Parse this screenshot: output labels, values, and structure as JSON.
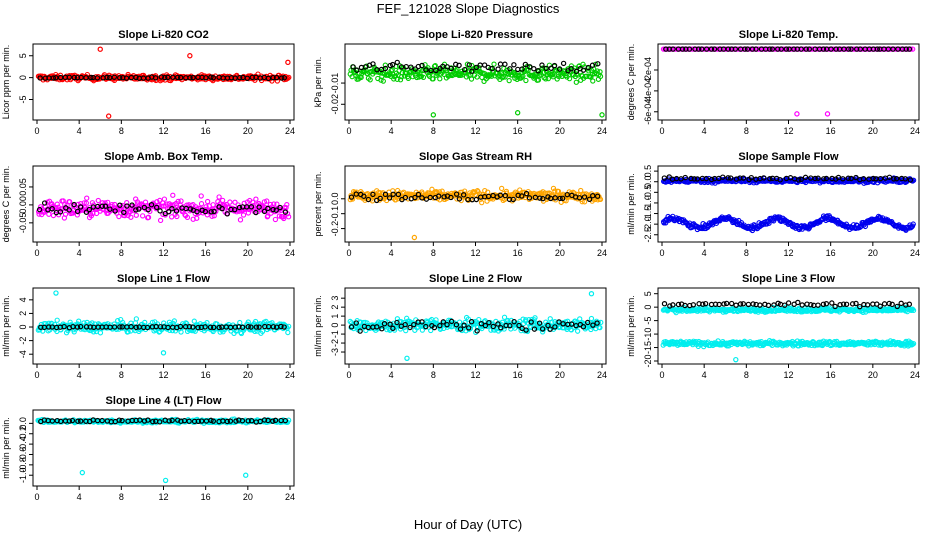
{
  "title": "FEF_121028  Slope Diagnostics",
  "x_axis_title": "Hour of Day (UTC)",
  "colors": {
    "red": "#ff0000",
    "green": "#00cc00",
    "magenta": "#ff00ff",
    "orange": "#ffa500",
    "blue": "#0000ee",
    "cyan": "#00eeee",
    "black": "#000000"
  },
  "chart_data": [
    {
      "id": "co2",
      "type": "scatter",
      "title": "Slope Li-820 CO2",
      "ylabel": "Licor ppm per min.",
      "xlim": [
        0,
        24
      ],
      "xticks": [
        0,
        4,
        8,
        12,
        16,
        20,
        24
      ],
      "ylim": [
        -9,
        7
      ],
      "yticks": [
        -5,
        0,
        5
      ],
      "ytick_labels": [
        "-5",
        "0",
        "5"
      ],
      "color": "red",
      "bands": [
        {
          "center": 0,
          "spread": 1.2
        }
      ],
      "black_center": 0,
      "black_spread": 0.3,
      "outliers": [
        {
          "x": 6.0,
          "y": 6.5
        },
        {
          "x": 6.8,
          "y": -8.8
        },
        {
          "x": 14.5,
          "y": 5.0
        },
        {
          "x": 23.8,
          "y": 3.5
        }
      ]
    },
    {
      "id": "pressure",
      "type": "scatter",
      "title": "Slope Li-820 Pressure",
      "ylabel": "kPa per min.",
      "xlim": [
        0,
        24
      ],
      "xticks": [
        0,
        4,
        8,
        12,
        16,
        20,
        24
      ],
      "ylim": [
        -0.026,
        0.007
      ],
      "yticks": [
        -0.01,
        -0.02
      ],
      "ytick_labels": [
        "-0.01",
        "-0.02"
      ],
      "color": "green",
      "bands": [
        {
          "center": -0.0055,
          "spread": 0.007
        }
      ],
      "black_center": -0.0025,
      "black_spread": 0.004,
      "outliers": [
        {
          "x": 8.0,
          "y": -0.025
        },
        {
          "x": 16.0,
          "y": -0.024
        },
        {
          "x": 24.0,
          "y": -0.025
        }
      ]
    },
    {
      "id": "temp",
      "type": "scatter",
      "title": "Slope Li-820 Temp.",
      "ylabel": "degrees C per min.",
      "xlim": [
        0,
        24
      ],
      "xticks": [
        0,
        4,
        8,
        12,
        16,
        20,
        24
      ],
      "ylim": [
        -0.00065,
        2e-05
      ],
      "yticks": [
        -0.0002,
        -0.0004,
        -0.0006
      ],
      "ytick_labels": [
        "-2e-04",
        "-4e-04",
        "-6e-04"
      ],
      "color": "magenta",
      "bands": [
        {
          "center": 0,
          "spread": 0
        }
      ],
      "black_center": 0,
      "black_spread": 0,
      "outliers": [
        {
          "x": 12.8,
          "y": -0.00062
        },
        {
          "x": 15.7,
          "y": -0.00062
        }
      ]
    },
    {
      "id": "box_temp",
      "type": "scatter",
      "title": "Slope Amb. Box Temp.",
      "ylabel": "degrees C per min.",
      "xlim": [
        0,
        24
      ],
      "xticks": [
        0,
        4,
        8,
        12,
        16,
        20,
        24
      ],
      "ylim": [
        -0.095,
        0.1
      ],
      "yticks": [
        0.05,
        0,
        -0.05
      ],
      "ytick_labels": [
        "0.05",
        "0.00",
        "-0.05"
      ],
      "color": "magenta",
      "bands": [
        {
          "center": -0.01,
          "spread": 0.05
        }
      ],
      "black_center": -0.01,
      "black_spread": 0.025,
      "outliers": []
    },
    {
      "id": "rh",
      "type": "scatter",
      "title": "Slope Gas Stream RH",
      "ylabel": "percent per min.",
      "xlim": [
        0,
        24
      ],
      "xticks": [
        0,
        4,
        8,
        12,
        16,
        20,
        24
      ],
      "ylim": [
        -0.27,
        0.2
      ],
      "yticks": [
        0,
        -0.1,
        -0.2
      ],
      "ytick_labels": [
        "0.0",
        "-0.1",
        "-0.2"
      ],
      "color": "orange",
      "bands": [
        {
          "center": 0.02,
          "spread": 0.07
        }
      ],
      "black_center": 0.01,
      "black_spread": 0.05,
      "outliers": [
        {
          "x": 6.2,
          "y": -0.26
        }
      ]
    },
    {
      "id": "sample_flow",
      "type": "scatter",
      "title": "Slope Sample Flow",
      "ylabel": "ml/min per min.",
      "xlim": [
        0,
        24
      ],
      "xticks": [
        0,
        4,
        8,
        12,
        16,
        20,
        24
      ],
      "ylim": [
        -2.7,
        0.6
      ],
      "yticks": [
        0.5,
        0,
        -0.5,
        -1,
        -1.5,
        -2,
        -2.5
      ],
      "ytick_labels": [
        "0.5",
        "0.0",
        "-0.5",
        "-1.0",
        "-1.5",
        "-2.0",
        "-2.5"
      ],
      "color": "blue",
      "bands": [
        {
          "center": 0.05,
          "spread": 0.18
        },
        {
          "center": -1.95,
          "spread": 0.25
        }
      ],
      "black_center": 0.15,
      "black_spread": 0.12,
      "outliers": []
    },
    {
      "id": "line1",
      "type": "scatter",
      "title": "Slope Line 1 Flow",
      "ylabel": "ml/min per min.",
      "xlim": [
        0,
        24
      ],
      "xticks": [
        0,
        4,
        8,
        12,
        16,
        20,
        24
      ],
      "ylim": [
        -5,
        5.3
      ],
      "yticks": [
        4,
        2,
        0,
        -2,
        -4
      ],
      "ytick_labels": [
        "4",
        "2",
        "0",
        "-2",
        "-4"
      ],
      "color": "cyan",
      "bands": [
        {
          "center": 0,
          "spread": 1.6
        }
      ],
      "black_center": 0,
      "black_spread": 0.15,
      "outliers": [
        {
          "x": 1.8,
          "y": 5.0
        },
        {
          "x": 12.0,
          "y": -3.8
        }
      ]
    },
    {
      "id": "line2",
      "type": "scatter",
      "title": "Slope Line 2 Flow",
      "ylabel": "ml/min per min.",
      "xlim": [
        0,
        24
      ],
      "xticks": [
        0,
        4,
        8,
        12,
        16,
        20,
        24
      ],
      "ylim": [
        -4,
        3.8
      ],
      "yticks": [
        3,
        2,
        1,
        0,
        -1,
        -2,
        -3
      ],
      "ytick_labels": [
        "3",
        "2",
        "1",
        "0",
        "-1",
        "-2",
        "-3"
      ],
      "color": "cyan",
      "bands": [
        {
          "center": 0,
          "spread": 1.4
        }
      ],
      "black_center": 0,
      "black_spread": 1.3,
      "outliers": [
        {
          "x": 5.5,
          "y": -3.7
        },
        {
          "x": 23.0,
          "y": 3.5
        }
      ]
    },
    {
      "id": "line3",
      "type": "scatter",
      "title": "Slope Line 3 Flow",
      "ylabel": "ml/min per min.",
      "xlim": [
        0,
        24
      ],
      "xticks": [
        0,
        4,
        8,
        12,
        16,
        20,
        24
      ],
      "ylim": [
        -20,
        6
      ],
      "yticks": [
        5,
        0,
        -5,
        -10,
        -15,
        -20
      ],
      "ytick_labels": [
        "5",
        "0",
        "-5",
        "-10",
        "-15",
        "-20"
      ],
      "color": "cyan",
      "bands": [
        {
          "center": -1.0,
          "spread": 1.5
        },
        {
          "center": -13.5,
          "spread": 1.8
        }
      ],
      "black_center": 1.0,
      "black_spread": 1.3,
      "outliers": [
        {
          "x": 7.0,
          "y": -19.5
        }
      ]
    },
    {
      "id": "line4",
      "type": "scatter",
      "title": "Slope Line 4 (LT) Flow",
      "ylabel": "ml/min per min.",
      "xlim": [
        0,
        24
      ],
      "xticks": [
        0,
        4,
        8,
        12,
        16,
        20,
        24
      ],
      "ylim": [
        -1.15,
        0.2
      ],
      "yticks": [
        0,
        -0.2,
        -0.4,
        -0.6,
        -0.8,
        -1
      ],
      "ytick_labels": [
        "0.0",
        "-0.2",
        "-0.4",
        "-0.6",
        "-0.8",
        "-1.0"
      ],
      "color": "cyan",
      "bands": [
        {
          "center": 0.04,
          "spread": 0.06
        }
      ],
      "black_center": 0.05,
      "black_spread": 0.04,
      "outliers": [
        {
          "x": 4.3,
          "y": -0.95
        },
        {
          "x": 12.2,
          "y": -1.1
        },
        {
          "x": 19.8,
          "y": -1.0
        }
      ]
    }
  ]
}
